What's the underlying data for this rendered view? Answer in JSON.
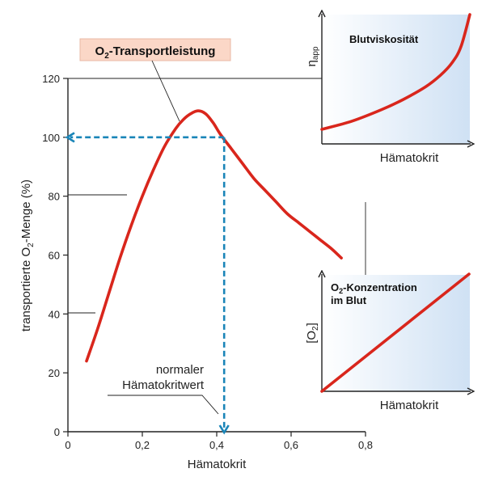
{
  "chart_data": [
    {
      "type": "line",
      "title": "",
      "xlabel": "Hämatokrit",
      "ylabel_parts": [
        "transportierte O",
        "2",
        "-Menge (%)"
      ],
      "xlim": [
        0,
        0.8
      ],
      "ylim": [
        0,
        120
      ],
      "x_ticks": [
        "0",
        "0,2",
        "0,4",
        "0,6",
        "0,8"
      ],
      "y_ticks": [
        "0",
        "20",
        "40",
        "60",
        "80",
        "100",
        "120"
      ],
      "series": [
        {
          "name": "O₂-Transportleistung",
          "x": [
            0.05,
            0.08,
            0.11,
            0.14,
            0.17,
            0.2,
            0.23,
            0.26,
            0.29,
            0.31,
            0.33,
            0.35,
            0.37,
            0.39,
            0.41,
            0.44,
            0.47,
            0.5,
            0.53,
            0.56,
            0.59,
            0.62,
            0.65,
            0.68,
            0.71,
            0.735
          ],
          "y": [
            24,
            35,
            47,
            59,
            70,
            80,
            89,
            97,
            103,
            106,
            108,
            109,
            108,
            105,
            101,
            96,
            91,
            86,
            82,
            78,
            74,
            71,
            68,
            65,
            62,
            59
          ]
        }
      ],
      "series_label": {
        "main": "O",
        "sub": "2",
        "rest": "-Transportleistung"
      },
      "reference": {
        "x": 0.42,
        "y": 100
      },
      "annotation_lines": [
        "normaler",
        "Hämatokritwert"
      ],
      "grid": false
    },
    {
      "type": "line",
      "title": "Blutviskosität",
      "xlabel": "Hämatokrit",
      "ylabel": {
        "main": "η",
        "sub": "app"
      },
      "series": [
        {
          "name": "Blutviskosität",
          "x": [
            0,
            0.2,
            0.4,
            0.55,
            0.7,
            0.8,
            0.88,
            0.94,
            1.0
          ],
          "y": [
            0,
            0.07,
            0.17,
            0.26,
            0.37,
            0.47,
            0.58,
            0.72,
            1.0
          ]
        }
      ],
      "grid": false
    },
    {
      "type": "line",
      "title_parts": [
        "O",
        "2",
        "-Konzentration"
      ],
      "title_line2": "im Blut",
      "xlabel": "Hämatokrit",
      "ylabel": {
        "main": "[O",
        "sub": "2",
        "rest": "]"
      },
      "series": [
        {
          "name": "O₂-Konzentration",
          "x": [
            0,
            1
          ],
          "y": [
            0,
            1
          ]
        }
      ],
      "grid": false
    }
  ],
  "colors": {
    "curve": "#d9261c",
    "dashed": "#1a85b8",
    "label_box": "#fbd7c7",
    "panel_gradient": "#cfe1f4"
  }
}
